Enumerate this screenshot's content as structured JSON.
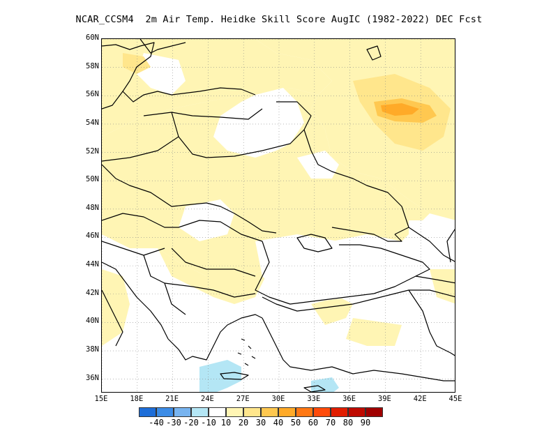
{
  "title": "NCAR_CCSM4  2m Air Temp. Heidke Skill Score AugIC (1982-2022) DEC Fcst",
  "map": {
    "lon_range": [
      15,
      45
    ],
    "lat_range": [
      35,
      60
    ],
    "lat_labels": [
      "60N",
      "58N",
      "56N",
      "54N",
      "52N",
      "50N",
      "48N",
      "46N",
      "44N",
      "42N",
      "40N",
      "38N",
      "36N"
    ],
    "lon_labels": [
      "15E",
      "18E",
      "21E",
      "24E",
      "27E",
      "30E",
      "33E",
      "36E",
      "39E",
      "42E",
      "45E"
    ],
    "grid": "dotted",
    "coastline_color": "#000000"
  },
  "colorbar": {
    "colors": [
      "#1e6ed8",
      "#3c8ce6",
      "#78b4f0",
      "#b4e6f5",
      "#ffffff",
      "#fff5b4",
      "#ffe68c",
      "#ffc850",
      "#ffaa28",
      "#ff7814",
      "#ff4b0a",
      "#e11e00",
      "#be0a00",
      "#a00000"
    ],
    "labels": [
      "-40",
      "-30",
      "-20",
      "-10",
      "10",
      "20",
      "30",
      "40",
      "50",
      "60",
      "70",
      "80",
      "90"
    ]
  }
}
